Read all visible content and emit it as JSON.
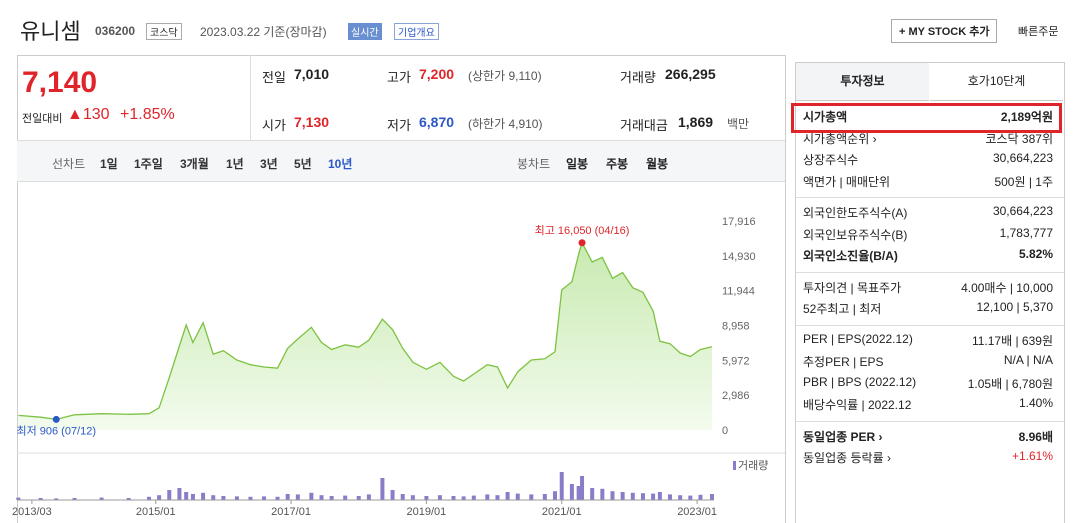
{
  "header": {
    "name": "유니셈",
    "code": "036200",
    "market": "코스닥",
    "date": "2023.03.22 기준(장마감)",
    "realtime": "실시간",
    "overview": "기업개요",
    "mystock": "+ MY STOCK 추가",
    "quick": "빠른주문"
  },
  "quote": {
    "price": "7,140",
    "change_label": "전일대비",
    "change": "▲130",
    "change_pct": "+1.85%",
    "items": [
      {
        "label": "전일",
        "value": "7,010"
      },
      {
        "label": "고가",
        "value": "7,200",
        "extra": "(상한가 9,110)",
        "color": "#e0252a"
      },
      {
        "label": "거래량",
        "value": "266,295"
      },
      {
        "label": "시가",
        "value": "7,130",
        "color": "#e0252a"
      },
      {
        "label": "저가",
        "value": "6,870",
        "extra": "(하한가 4,910)",
        "color": "#2a58c8"
      },
      {
        "label": "거래대금",
        "value": "1,869",
        "extra": "백만"
      }
    ]
  },
  "periods": {
    "line_label": "선차트",
    "line": [
      "1일",
      "1주일",
      "3개월",
      "1년",
      "3년",
      "5년",
      "10년"
    ],
    "candle_label": "봉차트",
    "candle": [
      "일봉",
      "주봉",
      "월봉"
    ]
  },
  "chart_data": {
    "type": "area",
    "color": "#7dc242",
    "x": [
      2012.97,
      2013.3,
      2013.53,
      2013.8,
      2014.2,
      2014.6,
      2014.9,
      2015.05,
      2015.2,
      2015.35,
      2015.45,
      2015.55,
      2015.7,
      2015.85,
      2016.0,
      2016.2,
      2016.4,
      2016.6,
      2016.8,
      2016.95,
      2017.1,
      2017.3,
      2017.45,
      2017.6,
      2017.8,
      2018.0,
      2018.15,
      2018.35,
      2018.5,
      2018.65,
      2018.8,
      2019.0,
      2019.2,
      2019.4,
      2019.55,
      2019.7,
      2019.9,
      2020.05,
      2020.2,
      2020.35,
      2020.55,
      2020.75,
      2020.9,
      2021.0,
      2021.15,
      2021.25,
      2021.3,
      2021.45,
      2021.6,
      2021.75,
      2021.9,
      2022.05,
      2022.2,
      2022.35,
      2022.45,
      2022.6,
      2022.75,
      2022.9,
      2023.05,
      2023.22
    ],
    "values": [
      1250,
      1100,
      906,
      1300,
      1400,
      1350,
      1400,
      1900,
      4500,
      7200,
      9000,
      7500,
      9200,
      6500,
      6800,
      6000,
      5600,
      5400,
      5300,
      7000,
      7800,
      8800,
      7500,
      6900,
      7300,
      7100,
      7700,
      9500,
      8600,
      7000,
      5800,
      5200,
      5800,
      4600,
      4200,
      4800,
      5600,
      5400,
      3600,
      5000,
      6000,
      6100,
      6700,
      12000,
      12700,
      15100,
      16050,
      14400,
      14800,
      13000,
      13500,
      12200,
      11800,
      10200,
      7600,
      7400,
      6600,
      6300,
      6900,
      7140
    ],
    "xlim": [
      2012.95,
      2023.25
    ],
    "ylim": [
      0,
      17916
    ],
    "yticks": [
      0,
      {
        "value": 2986,
        "label": "2,986"
      },
      {
        "value": 5972,
        "label": "5,972"
      },
      {
        "value": 8958,
        "label": "8,958"
      },
      {
        "value": 11944,
        "label": "11,944"
      },
      {
        "value": 14930,
        "label": "14,930"
      },
      {
        "value": 17916,
        "label": "17,916"
      }
    ],
    "xticks": [
      {
        "value": 2013.17,
        "label": "2013/03"
      },
      {
        "value": 2015.0,
        "label": "2015/01"
      },
      {
        "value": 2017.0,
        "label": "2017/01"
      },
      {
        "value": 2019.0,
        "label": "2019/01"
      },
      {
        "value": 2021.0,
        "label": "2021/01"
      },
      {
        "value": 2023.0,
        "label": "2023/01"
      }
    ],
    "annotations": [
      {
        "text": "최고 16,050 (04/16)",
        "x": 2021.3,
        "y": 16050,
        "color": "#e0252a"
      },
      {
        "text": "최저 906 (07/12)",
        "x": 2013.53,
        "y": 906,
        "color": "#2a58c8"
      }
    ],
    "volume": {
      "label": "거래량",
      "color": "#8a7cc8",
      "ylim": [
        0,
        100
      ],
      "values": [
        6,
        5,
        4,
        5,
        6,
        5,
        8,
        12,
        25,
        30,
        20,
        15,
        18,
        12,
        10,
        9,
        8,
        9,
        8,
        15,
        14,
        18,
        12,
        10,
        11,
        10,
        14,
        55,
        25,
        15,
        12,
        10,
        12,
        10,
        9,
        11,
        14,
        12,
        20,
        16,
        14,
        15,
        22,
        70,
        40,
        35,
        60,
        30,
        28,
        22,
        20,
        18,
        17,
        16,
        20,
        14,
        12,
        11,
        13,
        15
      ]
    }
  },
  "info": {
    "tabs": [
      "투자정보",
      "호가10단계"
    ],
    "groups": [
      [
        {
          "label": "시가총액",
          "value": "2,189억원"
        },
        {
          "label": "시가총액순위 ›",
          "value": "코스닥 387위"
        },
        {
          "label": "상장주식수",
          "value": "30,664,223"
        },
        {
          "label": "액면가 | 매매단위",
          "value": "500원 | 1주"
        }
      ],
      [
        {
          "label": "외국인한도주식수(A)",
          "value": "30,664,223"
        },
        {
          "label": "외국인보유주식수(B)",
          "value": "1,783,777"
        },
        {
          "label": "외국인소진율(B/A)",
          "value": "5.82%"
        }
      ],
      [
        {
          "label": "투자의견 | 목표주가",
          "value": "4.00매수 | 10,000"
        },
        {
          "label": "52주최고 | 최저",
          "value": "12,100 | 5,370"
        }
      ],
      [
        {
          "label": "PER | EPS(2022.12)",
          "value": "11.17배 | 639원"
        },
        {
          "label": "추정PER | EPS",
          "value": "N/A | N/A"
        },
        {
          "label": "PBR | BPS (2022.12)",
          "value": "1.05배 | 6,780원"
        },
        {
          "label": "배당수익률 | 2022.12",
          "value": "1.40%"
        }
      ],
      [
        {
          "label": "동일업종 PER ›",
          "value": "8.96배"
        },
        {
          "label": "동일업종 등락률 ›",
          "value": "+1.61%",
          "color": "#e0252a"
        }
      ]
    ]
  }
}
